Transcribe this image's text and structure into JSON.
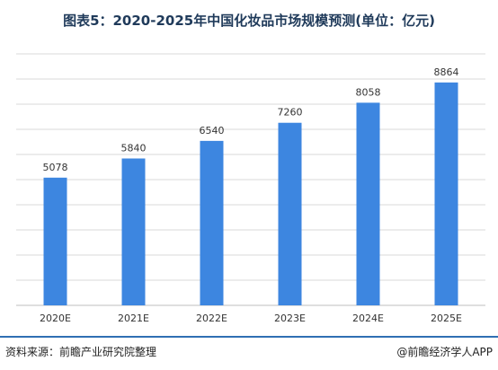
{
  "chart_data": {
    "type": "bar",
    "title": "图表5：2020-2025年中国化妆品市场规模预测(单位：亿元)",
    "categories": [
      "2020E",
      "2021E",
      "2022E",
      "2023E",
      "2024E",
      "2025E"
    ],
    "values": [
      5078,
      5840,
      6540,
      7260,
      8058,
      8864
    ],
    "ylim": [
      0,
      10000
    ],
    "grid": true,
    "bar_color": "#3d86e0",
    "grid_color": "#d9d9d9"
  },
  "footer": {
    "source": "资料来源：前瞻产业研究院整理",
    "brand": "@前瞻经济学人APP"
  }
}
